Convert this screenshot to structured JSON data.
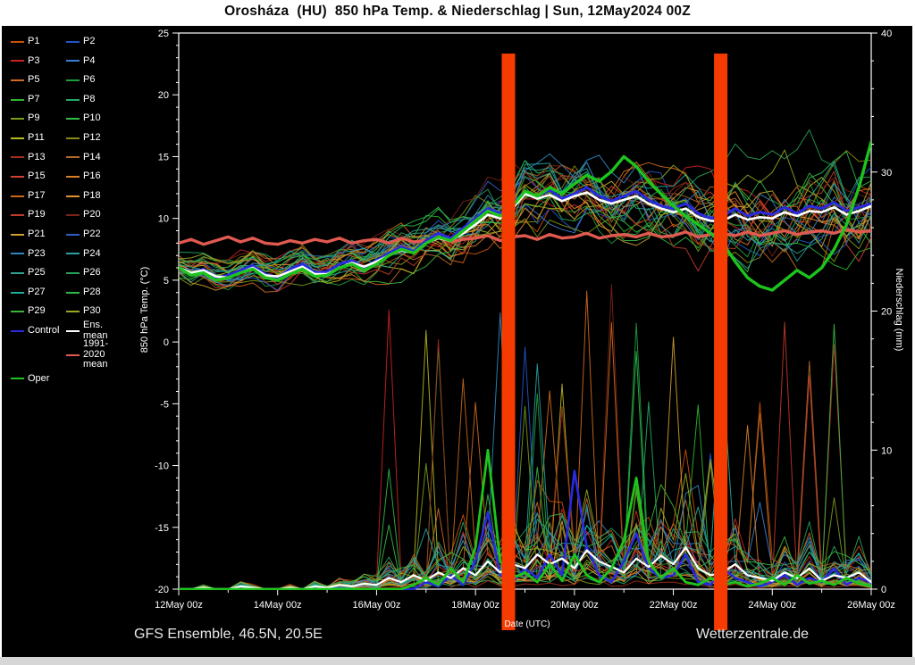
{
  "title": "Orosháza  (HU)  850 hPa Temp. & Niederschlag | Sun, 12May2024 00Z",
  "footer": {
    "left": "GFS Ensemble, 46.5N, 20.5E",
    "right": "Wetterzentrale.de"
  },
  "axes": {
    "left_label": "850 hPa Temp. (°C)",
    "right_label": "Niederschlag (mm)",
    "x_label": "Date (UTC)",
    "left_ticks": [
      25,
      20,
      15,
      10,
      5,
      0,
      -5,
      -10,
      -15,
      -20
    ],
    "right_ticks": [
      40,
      30,
      20,
      10,
      0
    ],
    "x_tick_labels": [
      "12May 00z",
      "14May 00z",
      "16May 00z",
      "18May 00z",
      "20May 00z",
      "22May 00z",
      "24May 00z",
      "26May 00z"
    ],
    "temp_range": [
      -20,
      25
    ],
    "precip_range": [
      0,
      40
    ],
    "x_range_hours": [
      0,
      336
    ]
  },
  "annotations": {
    "bar_color": "#f63b00",
    "vertical_bars_hours": [
      160,
      263
    ]
  },
  "legend": {
    "members": [
      "P1",
      "P2",
      "P3",
      "P4",
      "P5",
      "P6",
      "P7",
      "P8",
      "P9",
      "P10",
      "P11",
      "P12",
      "P13",
      "P14",
      "P15",
      "P16",
      "P17",
      "P18",
      "P19",
      "P20",
      "P21",
      "P22",
      "P23",
      "P24",
      "P25",
      "P26",
      "P27",
      "P28",
      "P29",
      "P30"
    ],
    "member_colors": [
      "#c8500a",
      "#2255cc",
      "#cc2222",
      "#3a7fd5",
      "#d2691e",
      "#1f9e3e",
      "#2eb82e",
      "#22aa66",
      "#7a9a1a",
      "#33bb44",
      "#b8b820",
      "#8a8a10",
      "#a03018",
      "#b06a28",
      "#d04030",
      "#d8802a",
      "#c86818",
      "#e09030",
      "#c03a2a",
      "#7a241a",
      "#d0a030",
      "#3060c8",
      "#2f86c0",
      "#2aa0a0",
      "#2f9e8e",
      "#28a058",
      "#1fae9a",
      "#2db84d",
      "#3ab63a",
      "#9aa81e"
    ],
    "control_label": "Control",
    "control_color": "#2a2adf",
    "ens_mean_label": "Ens. mean",
    "ens_mean_color": "#ffffff",
    "clim_label": "1991-2020 mean",
    "clim_color": "#e05a50",
    "oper_label": "Oper",
    "oper_color": "#1ec41e"
  },
  "chart_data": {
    "type": "line",
    "title": "Orosháza (HU) 850 hPa Temp. & Niederschlag | Sun, 12May2024 00Z",
    "xlabel": "Date (UTC)",
    "ylabel_left": "850 hPa Temp. (°C)",
    "ylabel_right": "Niederschlag (mm)",
    "ylim_temp": [
      -20,
      25
    ],
    "ylim_precip": [
      0,
      40
    ],
    "x_hours_step": 6,
    "n_points": 57,
    "series": {
      "ens_mean_temp": [
        6.0,
        5.6,
        5.8,
        5.3,
        5.2,
        5.6,
        6.0,
        5.4,
        5.3,
        5.7,
        6.1,
        5.5,
        5.5,
        6.0,
        6.4,
        6.1,
        6.5,
        7.0,
        7.4,
        7.2,
        8.0,
        8.4,
        8.2,
        8.8,
        9.5,
        10.3,
        10.0,
        10.8,
        12.0,
        11.6,
        11.9,
        11.4,
        11.8,
        12.1,
        11.5,
        11.2,
        11.5,
        11.8,
        11.2,
        10.8,
        10.5,
        10.8,
        10.1,
        9.8,
        9.8,
        10.3,
        9.9,
        10.1,
        10.0,
        10.5,
        10.2,
        10.6,
        10.5,
        10.9,
        10.3,
        10.6,
        11.0
      ],
      "control_temp": [
        6.0,
        5.5,
        5.9,
        5.2,
        5.4,
        5.8,
        6.2,
        5.5,
        5.2,
        5.9,
        6.3,
        5.6,
        5.7,
        6.3,
        6.6,
        6.0,
        6.6,
        7.2,
        7.7,
        7.3,
        8.2,
        8.8,
        8.4,
        9.2,
        10.0,
        10.8,
        10.4,
        11.2,
        12.2,
        11.8,
        12.3,
        11.6,
        12.0,
        12.5,
        11.8,
        11.4,
        11.8,
        12.2,
        11.5,
        11.0,
        10.8,
        11.2,
        10.4,
        10.0,
        10.2,
        10.8,
        10.2,
        10.5,
        10.3,
        10.9,
        10.4,
        11.0,
        10.8,
        11.3,
        10.6,
        10.9,
        11.2
      ],
      "oper_temp": [
        6.0,
        5.4,
        5.6,
        5.0,
        5.2,
        5.6,
        5.9,
        5.2,
        5.0,
        5.5,
        5.9,
        5.3,
        5.4,
        6.0,
        6.3,
        5.8,
        6.3,
        7.0,
        7.5,
        7.2,
        8.0,
        8.5,
        8.2,
        9.0,
        9.8,
        10.6,
        10.2,
        11.0,
        12.2,
        11.8,
        12.5,
        12.0,
        12.8,
        13.5,
        13.0,
        13.8,
        15.0,
        14.2,
        13.0,
        12.0,
        11.0,
        10.2,
        9.5,
        8.8,
        8.0,
        6.5,
        5.2,
        4.5,
        4.2,
        5.0,
        5.8,
        5.2,
        6.0,
        7.5,
        9.5,
        12.5,
        16.2
      ],
      "clim_mean_temp": [
        8.0,
        8.3,
        7.9,
        8.2,
        8.5,
        8.1,
        8.4,
        8.0,
        7.9,
        8.2,
        8.0,
        8.3,
        8.1,
        8.4,
        8.0,
        8.2,
        8.3,
        8.0,
        8.4,
        8.1,
        8.2,
        8.5,
        8.1,
        8.3,
        8.4,
        8.6,
        8.2,
        8.5,
        8.6,
        8.3,
        8.7,
        8.4,
        8.5,
        8.8,
        8.4,
        8.6,
        8.7,
        8.5,
        8.8,
        8.5,
        8.6,
        8.9,
        8.5,
        8.7,
        8.8,
        8.6,
        8.9,
        8.6,
        8.8,
        9.0,
        8.7,
        8.9,
        9.0,
        8.8,
        9.1,
        8.9,
        9.0
      ],
      "ensemble_spread_temp": [
        0.7,
        0.7,
        0.7,
        0.7,
        0.7,
        0.8,
        0.8,
        0.8,
        0.9,
        0.9,
        1.0,
        1.0,
        1.0,
        1.1,
        1.1,
        1.2,
        1.2,
        1.3,
        1.3,
        1.4,
        1.5,
        1.5,
        1.6,
        1.6,
        1.7,
        1.8,
        1.8,
        1.9,
        2.0,
        2.0,
        2.1,
        2.1,
        2.2,
        2.2,
        2.3,
        2.3,
        2.4,
        2.4,
        2.4,
        2.5,
        2.5,
        2.5,
        2.6,
        2.6,
        2.6,
        2.7,
        2.7,
        2.7,
        2.8,
        2.8,
        2.8,
        2.9,
        2.9,
        2.9,
        3.0,
        3.0,
        3.0
      ],
      "ens_mean_precip": [
        0,
        0,
        0.1,
        0,
        0,
        0.2,
        0.1,
        0,
        0,
        0.1,
        0,
        0.2,
        0.1,
        0.3,
        0.2,
        0.4,
        0.3,
        0.8,
        0.5,
        1.0,
        0.6,
        1.2,
        0.8,
        1.5,
        1.0,
        2.0,
        1.2,
        1.8,
        1.5,
        2.5,
        1.8,
        2.2,
        1.5,
        2.8,
        2.0,
        1.6,
        1.2,
        2.2,
        1.6,
        2.4,
        1.8,
        3.0,
        1.5,
        1.0,
        1.2,
        1.8,
        1.0,
        0.8,
        0.6,
        1.2,
        0.8,
        1.5,
        0.6,
        1.0,
        0.8,
        1.2,
        0.5
      ],
      "control_precip": [
        0,
        0,
        0,
        0,
        0,
        0,
        0,
        0,
        0,
        0,
        0,
        0,
        0,
        0,
        0,
        0,
        0,
        0,
        0,
        0,
        0.5,
        0.2,
        1.0,
        0.3,
        2.0,
        5.5,
        1.0,
        0.5,
        1.5,
        0.8,
        2.5,
        1.0,
        8.5,
        3.0,
        1.0,
        0.5,
        2.0,
        4.0,
        1.5,
        0.8,
        1.0,
        2.5,
        0.5,
        0.3,
        1.5,
        0.8,
        0.5,
        0.2,
        0.5,
        1.0,
        0.3,
        0.8,
        0.5,
        1.5,
        0.3,
        0.8,
        0.5
      ],
      "oper_precip": [
        0,
        0,
        0,
        0,
        0,
        0,
        0,
        0,
        0,
        0,
        0,
        0,
        0,
        0,
        0,
        0,
        0,
        0,
        0,
        0.3,
        0.8,
        0.3,
        1.5,
        0.5,
        3.0,
        10.0,
        2.0,
        0.8,
        1.2,
        0.5,
        1.8,
        0.6,
        2.5,
        1.0,
        0.5,
        1.5,
        3.5,
        8.0,
        2.0,
        0.8,
        1.5,
        0.5,
        0.3,
        0.8,
        0.3,
        0.5,
        0.2,
        0.4,
        0.8,
        0.3,
        1.0,
        0.4,
        0.6,
        0.3,
        0.8,
        0.4,
        0.2
      ]
    },
    "ensemble": {
      "count": 30,
      "seed": 42
    }
  }
}
